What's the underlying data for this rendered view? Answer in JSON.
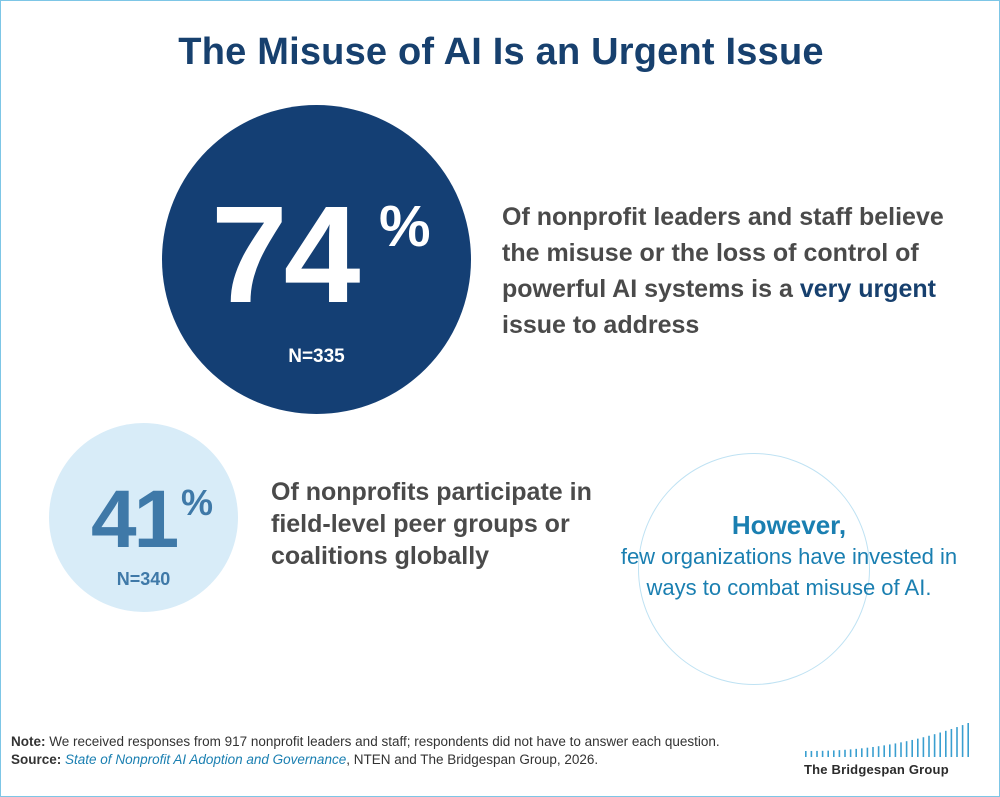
{
  "title": "The Misuse of AI Is an Urgent Issue",
  "stat_primary": {
    "value": "74",
    "unit": "%",
    "sample": "N=335",
    "text_before": "Of nonprofit leaders and staff believe the misuse or the loss of control of powerful AI systems is a",
    "text_emphasis": "very urgent",
    "text_after": "issue to address"
  },
  "stat_secondary": {
    "value": "41",
    "unit": "%",
    "sample": "N=340",
    "text": "Of nonprofits participate in field-level peer groups or coalitions globally"
  },
  "callout": {
    "head": "However,",
    "body": "few organizations have invested in ways to combat misuse of AI."
  },
  "footnote": {
    "note_label": "Note:",
    "note_text": "We received responses from 917 nonprofit leaders and staff; respondents did not have to answer each question.",
    "source_label": "Source:",
    "source_title": "State of Nonprofit AI Adoption and Governance",
    "source_rest": ", NTEN and The Bridgespan Group, 2026."
  },
  "logo": {
    "name": "The Bridgespan Group"
  },
  "colors": {
    "navy": "#143f74",
    "title": "#17406e",
    "light_blue": "#d8ecf8",
    "accent": "#1a7fb1",
    "text": "#4a4a4a"
  }
}
